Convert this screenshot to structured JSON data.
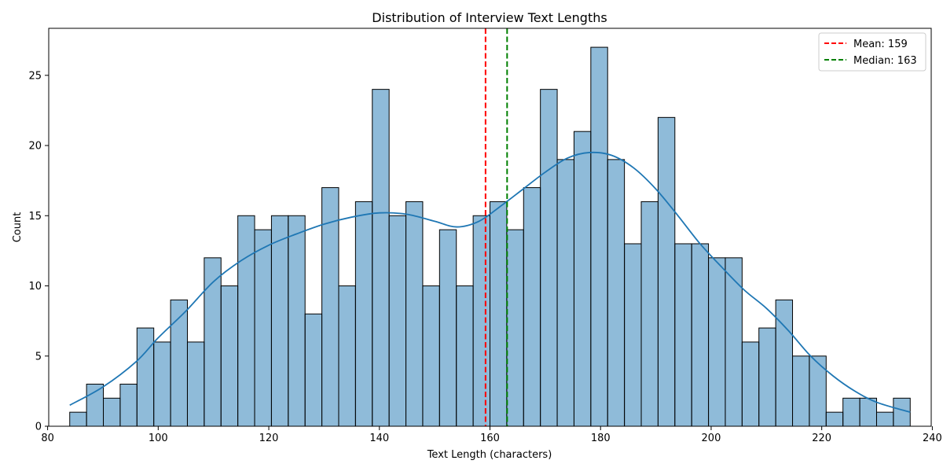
{
  "chart_data": {
    "type": "bar",
    "title": "Distribution of Interview Text Lengths",
    "xlabel": "Text Length (characters)",
    "ylabel": "Count",
    "xlim": [
      80.2,
      239.8
    ],
    "ylim": [
      0,
      28.35
    ],
    "xticks": [
      80,
      100,
      120,
      140,
      160,
      180,
      200,
      220,
      240
    ],
    "yticks": [
      0,
      5,
      10,
      15,
      20,
      25
    ],
    "bin_start": 84,
    "bin_width": 3.04,
    "bin_counts": [
      1,
      3,
      2,
      3,
      7,
      6,
      9,
      6,
      12,
      10,
      15,
      14,
      15,
      15,
      8,
      17,
      10,
      16,
      24,
      15,
      16,
      10,
      14,
      10,
      15,
      16,
      14,
      17,
      24,
      19,
      21,
      27,
      19,
      13,
      16,
      22,
      13,
      13,
      12,
      12,
      6,
      7,
      9,
      5,
      5,
      1,
      2,
      2,
      1,
      2
    ],
    "bar_color": "#1f77b4",
    "kde": {
      "name": "KDE",
      "color": "#1f77b4",
      "x": [
        84,
        90,
        96,
        100,
        105,
        110,
        115,
        120,
        125,
        130,
        135,
        140,
        145,
        150,
        154,
        158,
        162,
        166,
        170,
        174,
        178,
        182,
        186,
        190,
        194,
        198,
        202,
        206,
        210,
        214,
        218,
        222,
        226,
        230,
        236
      ],
      "y": [
        1.5,
        2.8,
        4.6,
        6.3,
        8.2,
        10.3,
        11.8,
        12.9,
        13.7,
        14.4,
        14.9,
        15.2,
        15.1,
        14.6,
        14.2,
        14.6,
        15.7,
        16.9,
        18.1,
        19.1,
        19.5,
        19.3,
        18.4,
        16.9,
        15.0,
        13.0,
        11.3,
        9.7,
        8.4,
        6.8,
        5.0,
        3.6,
        2.5,
        1.7,
        1.0
      ]
    },
    "reference_lines": [
      {
        "label": "Mean: 159",
        "x": 159.2,
        "color": "#ff0000"
      },
      {
        "label": "Median: 163",
        "x": 163.1,
        "color": "#008000"
      }
    ],
    "legend_position": "top-right",
    "grid": false
  }
}
